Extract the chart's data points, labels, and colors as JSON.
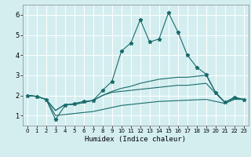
{
  "xlabel": "Humidex (Indice chaleur)",
  "bg_color": "#d4eef0",
  "line_color": "#1a6b6b",
  "grid_color": "#ffffff",
  "xlim": [
    -0.5,
    23.5
  ],
  "ylim": [
    0.5,
    6.5
  ],
  "xticks": [
    0,
    1,
    2,
    3,
    4,
    5,
    6,
    7,
    8,
    9,
    10,
    11,
    12,
    13,
    14,
    15,
    16,
    17,
    18,
    19,
    20,
    21,
    22,
    23
  ],
  "yticks": [
    1,
    2,
    3,
    4,
    5,
    6
  ],
  "series": [
    {
      "x": [
        0,
        1,
        2,
        3,
        4,
        5,
        6,
        7,
        8,
        9,
        10,
        11,
        12,
        13,
        14,
        15,
        16,
        17,
        18,
        19,
        20,
        21,
        22,
        23
      ],
      "y": [
        2.0,
        1.95,
        1.8,
        0.8,
        1.5,
        1.6,
        1.7,
        1.75,
        2.25,
        2.7,
        4.2,
        4.6,
        5.75,
        4.65,
        4.8,
        6.1,
        5.15,
        4.0,
        3.4,
        3.05,
        2.15,
        1.65,
        1.9,
        1.8
      ],
      "marker": "*",
      "markersize": 3.5
    },
    {
      "x": [
        0,
        1,
        2,
        3,
        4,
        5,
        6,
        7,
        8,
        9,
        10,
        11,
        12,
        13,
        14,
        15,
        16,
        17,
        18,
        19,
        20,
        21,
        22,
        23
      ],
      "y": [
        2.0,
        1.95,
        1.8,
        1.25,
        1.55,
        1.55,
        1.65,
        1.75,
        2.0,
        2.2,
        2.35,
        2.45,
        2.6,
        2.7,
        2.8,
        2.85,
        2.9,
        2.9,
        2.95,
        3.0,
        2.15,
        1.65,
        1.9,
        1.8
      ],
      "marker": null
    },
    {
      "x": [
        0,
        1,
        2,
        3,
        4,
        5,
        6,
        7,
        8,
        9,
        10,
        11,
        12,
        13,
        14,
        15,
        16,
        17,
        18,
        19,
        20,
        21,
        22,
        23
      ],
      "y": [
        2.0,
        1.95,
        1.8,
        1.25,
        1.55,
        1.55,
        1.65,
        1.75,
        2.0,
        2.15,
        2.2,
        2.25,
        2.3,
        2.35,
        2.4,
        2.45,
        2.5,
        2.5,
        2.55,
        2.6,
        2.1,
        1.65,
        1.85,
        1.8
      ],
      "marker": null
    },
    {
      "x": [
        0,
        1,
        2,
        3,
        4,
        5,
        6,
        7,
        8,
        9,
        10,
        11,
        12,
        13,
        14,
        15,
        16,
        17,
        18,
        19,
        20,
        21,
        22,
        23
      ],
      "y": [
        2.0,
        1.95,
        1.8,
        1.0,
        1.05,
        1.1,
        1.15,
        1.2,
        1.3,
        1.4,
        1.5,
        1.55,
        1.6,
        1.65,
        1.7,
        1.72,
        1.74,
        1.76,
        1.78,
        1.8,
        1.7,
        1.6,
        1.8,
        1.8
      ],
      "marker": null
    }
  ]
}
